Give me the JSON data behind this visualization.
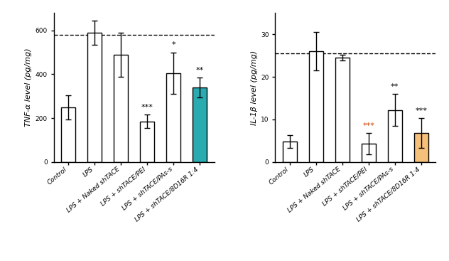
{
  "tnf_values": [
    250,
    590,
    490,
    185,
    405,
    340
  ],
  "tnf_errors": [
    55,
    55,
    100,
    30,
    95,
    45
  ],
  "tnf_dashed_line": 580,
  "tnf_ylim": [
    0,
    680
  ],
  "tnf_yticks": [
    0,
    200,
    400,
    600
  ],
  "tnf_ylabel": "TNF-α level (pg/mg)",
  "tnf_bar_colors": [
    "white",
    "white",
    "white",
    "white",
    "white",
    "#2aabb0"
  ],
  "tnf_significance": [
    "",
    "",
    "",
    "***",
    "*",
    "**"
  ],
  "il1b_values": [
    4.8,
    26.0,
    24.5,
    4.2,
    12.2,
    6.8
  ],
  "il1b_errors": [
    1.5,
    4.5,
    0.7,
    2.5,
    3.8,
    3.5
  ],
  "il1b_dashed_line": 25.5,
  "il1b_ylim": [
    0,
    35
  ],
  "il1b_yticks": [
    0,
    10,
    20,
    30
  ],
  "il1b_ylabel": "IL-1β level (pg/mg)",
  "il1b_bar_colors": [
    "white",
    "white",
    "white",
    "white",
    "white",
    "#f5c07a"
  ],
  "il1b_significance": [
    "",
    "",
    "",
    "***",
    "**",
    "***"
  ],
  "il1b_sig_colors": [
    "black",
    "black",
    "black",
    "#cc4400",
    "black",
    "black"
  ],
  "categories": [
    "Control",
    "LPS",
    "LPS + Naked shTACE",
    "LPS + shTACE/PEI",
    "LPS + shTACE/PAs-s",
    "LPS + shTACE/8D16R 1:4"
  ],
  "bar_edgecolor": "black",
  "bar_width": 0.55,
  "tick_fontsize": 6.5,
  "ylabel_fontsize": 8,
  "sig_fontsize": 8,
  "figure_width": 6.32,
  "figure_height": 3.67,
  "dpi": 100
}
